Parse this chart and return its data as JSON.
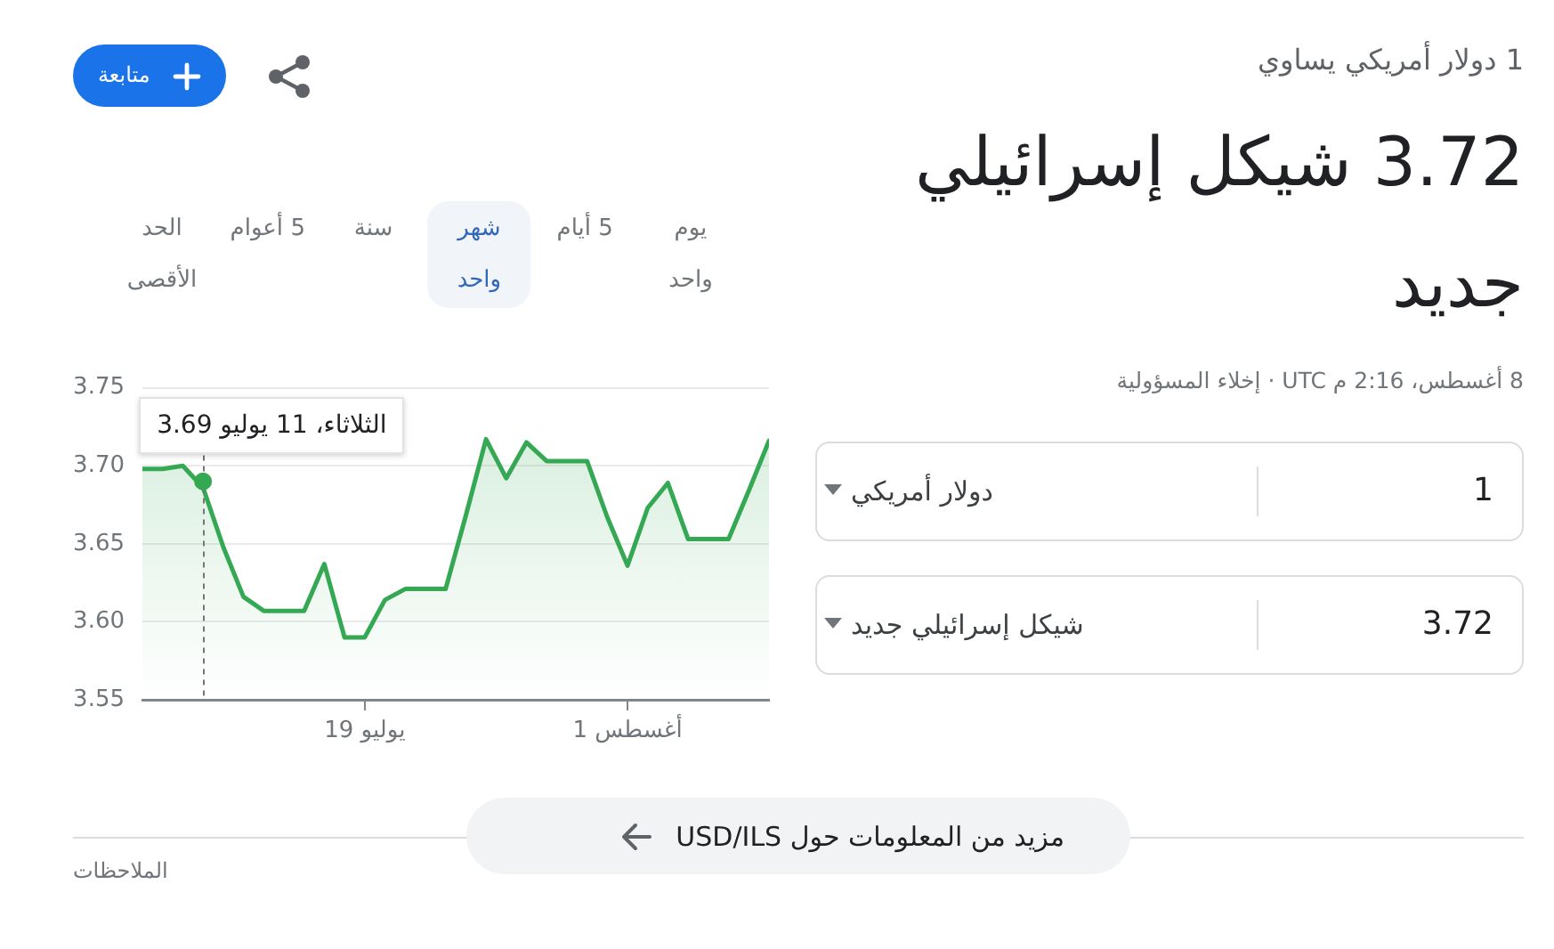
{
  "chart_data": {
    "type": "area",
    "title": "1 دولار أمريكي يساوي",
    "subtitle": "3.72 شيكل إسرائيلي جديد",
    "x": [
      "--07-08",
      "--07-09",
      "--07-10",
      "--07-11",
      "--07-12",
      "--07-13",
      "--07-14",
      "--07-15",
      "--07-16",
      "--07-17",
      "--07-18",
      "--07-19",
      "--07-20",
      "--07-21",
      "--07-22",
      "--07-23",
      "--07-24",
      "--07-25",
      "--07-26",
      "--07-27",
      "--07-28",
      "--07-29",
      "--07-30",
      "--07-31",
      "--08-01",
      "--08-02",
      "--08-03",
      "--08-04",
      "--08-05",
      "--08-06",
      "--08-07",
      "--08-08"
    ],
    "values": [
      3.698,
      3.698,
      3.7,
      3.686,
      3.648,
      3.616,
      3.607,
      3.607,
      3.607,
      3.637,
      3.59,
      3.59,
      3.614,
      3.621,
      3.621,
      3.621,
      3.668,
      3.717,
      3.692,
      3.715,
      3.703,
      3.703,
      3.703,
      3.667,
      3.636,
      3.673,
      3.689,
      3.653,
      3.653,
      3.653,
      3.684,
      3.716
    ],
    "color": "#34a853",
    "xlim": [
      "--07-08",
      "--08-08"
    ],
    "xticks": [
      {
        "value": "--07-19",
        "label": "19 يوليو"
      },
      {
        "value": "--08-01",
        "label": "1 أغسطس"
      }
    ],
    "ylim": [
      3.55,
      3.75
    ],
    "yticks": [
      3.55,
      {
        "value": 3.6,
        "label": "3.60"
      },
      3.65,
      {
        "value": 3.7,
        "label": "3.70"
      },
      3.75
    ],
    "grid": "y",
    "ref_lines": [
      {
        "axis": "x",
        "value": "--07-11",
        "line_style": "dashed",
        "color": "#757575"
      }
    ],
    "annotations": [
      {
        "text": "الثلاثاء، 11 يوليو 3.69",
        "x": "--07-11",
        "y": 3.69
      },
      "8 أغسطس، 2:16 م UTC · إخلاء المسؤولية",
      "متابعة",
      "يوم واحد",
      "5 أيام",
      "شهر واحد",
      "سنة",
      "5 أعوام",
      "الحد الأقصى",
      "1",
      "دولار أمريكي",
      "3.72",
      "شيكل إسرائيلي جديد",
      "مزيد من المعلومات حول USD/ILS",
      "الملاحظات"
    ]
  }
}
